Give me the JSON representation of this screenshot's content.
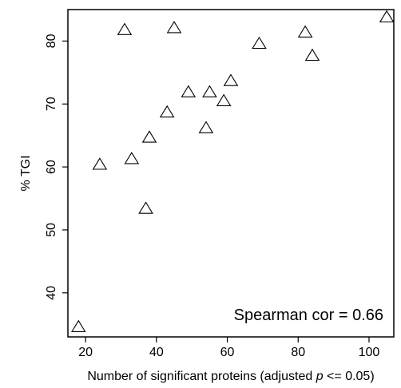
{
  "chart_data": {
    "type": "scatter",
    "marker": "open-triangle",
    "xlabel_prefix": "Number of significant proteins (adjusted ",
    "xlabel_italic": "p",
    "xlabel_suffix": " <= 0.05)",
    "ylabel": "% TGI",
    "annotation": "Spearman cor = 0.66",
    "xlim": [
      15,
      107
    ],
    "ylim": [
      33,
      85
    ],
    "x_ticks": [
      20,
      40,
      60,
      80,
      100
    ],
    "y_ticks": [
      40,
      50,
      60,
      70,
      80
    ],
    "grid": false,
    "points": [
      {
        "x": 18,
        "y": 34.5
      },
      {
        "x": 24,
        "y": 60.3
      },
      {
        "x": 31,
        "y": 81.7
      },
      {
        "x": 33,
        "y": 61.2
      },
      {
        "x": 37,
        "y": 53.3
      },
      {
        "x": 38,
        "y": 64.6
      },
      {
        "x": 43,
        "y": 68.6
      },
      {
        "x": 45,
        "y": 82.0
      },
      {
        "x": 49,
        "y": 71.8
      },
      {
        "x": 54,
        "y": 66.1
      },
      {
        "x": 55,
        "y": 71.8
      },
      {
        "x": 59,
        "y": 70.4
      },
      {
        "x": 61,
        "y": 73.6
      },
      {
        "x": 69,
        "y": 79.5
      },
      {
        "x": 82,
        "y": 81.3
      },
      {
        "x": 84,
        "y": 77.6
      },
      {
        "x": 105,
        "y": 83.7
      }
    ]
  }
}
